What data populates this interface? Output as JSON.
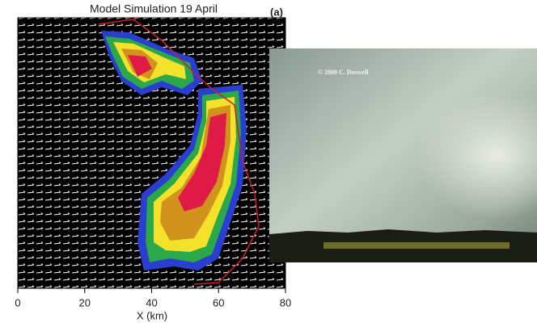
{
  "chart_data": {
    "type": "field",
    "title": "Model Simulation 19 April",
    "panel_label": "(a)",
    "xlabel": "X (km)",
    "xlim": [
      0,
      80
    ],
    "xticks": [
      0,
      20,
      40,
      60,
      80
    ],
    "photo_credit": "© 2000 C. Doswell"
  }
}
